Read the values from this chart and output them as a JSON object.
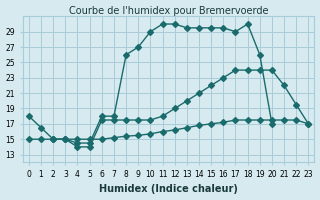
{
  "title": "Courbe de l'humidex pour Bremervoerde",
  "xlabel": "Humidex (Indice chaleur)",
  "bg_color": "#d6eaf0",
  "grid_color": "#a8ccd8",
  "line_color": "#1a6b6b",
  "line1": {
    "x": [
      0,
      1,
      2,
      3,
      4,
      5,
      6,
      7,
      8,
      9,
      10,
      11,
      12,
      13,
      14,
      15,
      16,
      17,
      18,
      19,
      20
    ],
    "y": [
      18,
      16.5,
      15,
      15,
      14.5,
      14.5,
      18,
      18,
      26,
      27,
      29,
      30,
      30,
      29.5,
      29.5,
      29.5,
      29.5,
      29,
      30,
      26,
      17
    ]
  },
  "line2": {
    "x": [
      2,
      3,
      4,
      5,
      6,
      7,
      8,
      9,
      10,
      11,
      12,
      13,
      14,
      15,
      16,
      17,
      18,
      19,
      20,
      21,
      22,
      23
    ],
    "y": [
      15,
      15,
      14,
      14,
      17.5,
      17.5,
      17.5,
      17.5,
      17.5,
      18,
      19,
      20,
      21,
      22,
      23,
      24,
      24,
      24,
      24,
      22,
      19.5,
      17
    ]
  },
  "line3": {
    "x": [
      0,
      1,
      2,
      3,
      4,
      5,
      6,
      7,
      8,
      9,
      10,
      11,
      12,
      13,
      14,
      15,
      16,
      17,
      18,
      19,
      20,
      21,
      22,
      23
    ],
    "y": [
      15,
      15,
      15,
      15,
      15,
      15,
      15,
      15.2,
      15.4,
      15.5,
      15.7,
      16,
      16.2,
      16.5,
      16.8,
      17,
      17.2,
      17.5,
      17.5,
      17.5,
      17.5,
      17.5,
      17.5,
      17
    ]
  },
  "xlim": [
    -0.5,
    23.5
  ],
  "ylim": [
    12,
    31
  ],
  "yticks": [
    13,
    15,
    17,
    19,
    21,
    23,
    25,
    27,
    29
  ],
  "xticks": [
    0,
    1,
    2,
    3,
    4,
    5,
    6,
    7,
    8,
    9,
    10,
    11,
    12,
    13,
    14,
    15,
    16,
    17,
    18,
    19,
    20,
    21,
    22,
    23
  ],
  "title_fontsize": 7,
  "label_fontsize": 7,
  "tick_fontsize": 5.5
}
